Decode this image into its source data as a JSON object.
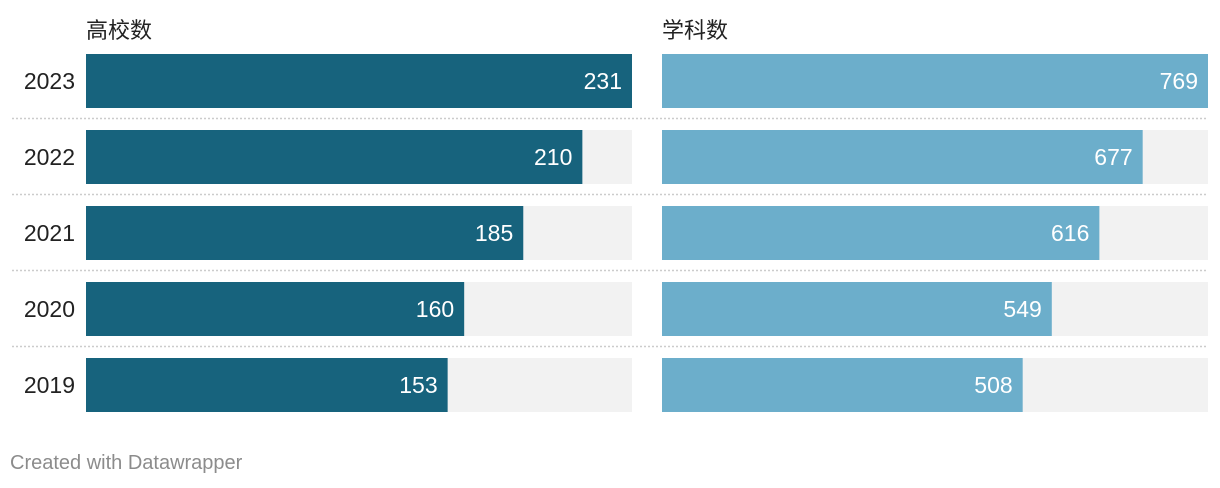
{
  "chart_data": {
    "type": "bar",
    "orientation": "horizontal",
    "categories": [
      "2023",
      "2022",
      "2021",
      "2020",
      "2019"
    ],
    "series": [
      {
        "name": "高校数",
        "values": [
          231,
          210,
          185,
          160,
          153
        ],
        "color": "#17637d"
      },
      {
        "name": "学科数",
        "values": [
          769,
          677,
          616,
          549,
          508
        ],
        "color": "#6caecb"
      }
    ],
    "track_color": "#f2f2f2",
    "separator_color": "#cccccc",
    "value_label_color": "#ffffff",
    "grid": false,
    "legend": "none"
  },
  "footer": {
    "credit": "Created with Datawrapper"
  }
}
